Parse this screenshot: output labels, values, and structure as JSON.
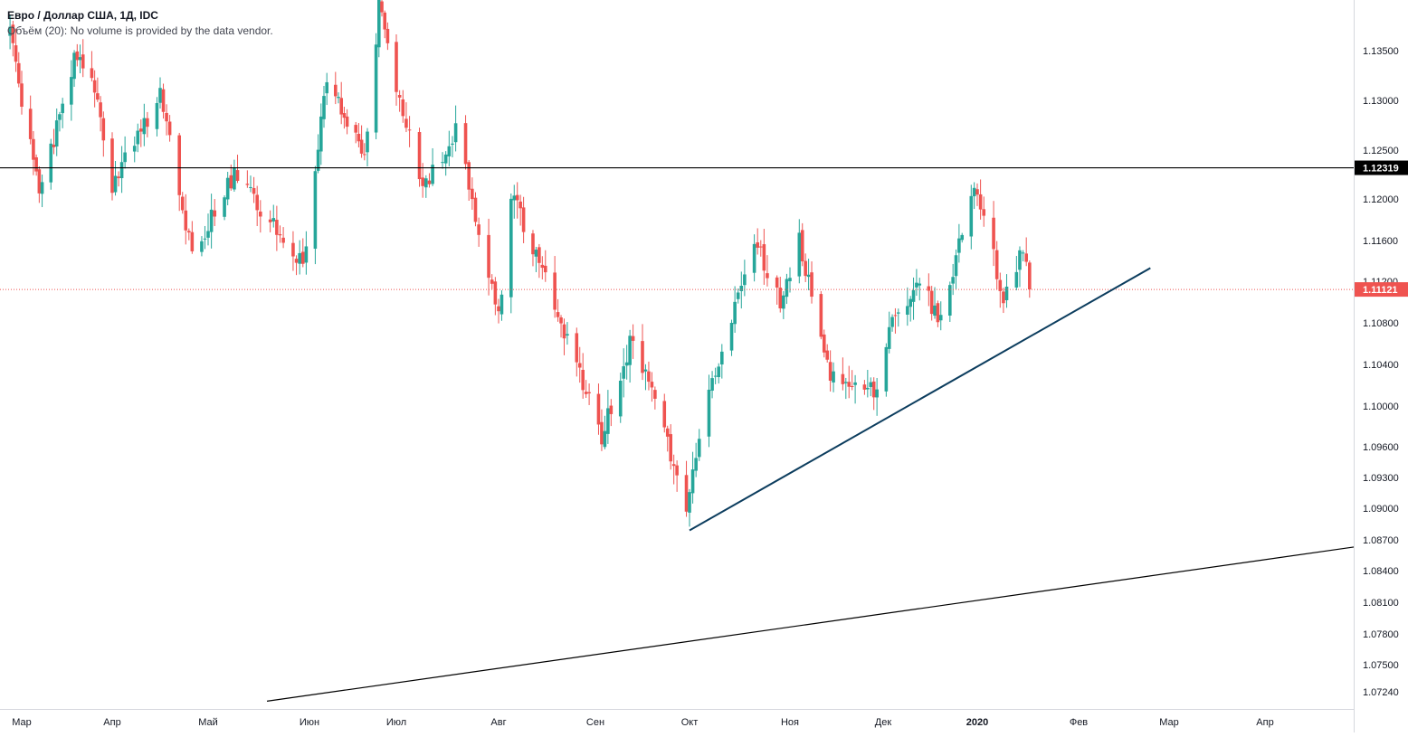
{
  "legend": {
    "title": "Евро / Доллар США, 1Д, IDC",
    "volume_note": "Объём (20): No volume is provided by the data vendor."
  },
  "colors": {
    "up": "#26a69a",
    "down": "#ef5350",
    "trendline": "#0c3d5e",
    "resistance": "#000000",
    "price_line": "#ef5350",
    "axis_text": "#131722"
  },
  "chart_data": {
    "type": "candlestick",
    "symbol": "EURUSD",
    "y_axis": {
      "ticks": [
        1.135,
        1.13,
        1.125,
        1.12,
        1.116,
        1.112,
        1.108,
        1.104,
        1.1,
        1.096,
        1.093,
        1.09,
        1.087,
        1.084,
        1.081,
        1.078,
        1.075,
        1.0724
      ],
      "tick_labels": [
        "1.13500",
        "1.13000",
        "1.12500",
        "1.12000",
        "1.11600",
        "1.11200",
        "1.10800",
        "1.10400",
        "1.10000",
        "1.09600",
        "1.09300",
        "1.09000",
        "1.08700",
        "1.08400",
        "1.08100",
        "1.07800",
        "1.07500",
        "1.07240"
      ],
      "range": [
        1.0715,
        1.1405
      ]
    },
    "x_axis": {
      "labels": [
        "Мар",
        "Апр",
        "Май",
        "Июн",
        "Июл",
        "Авг",
        "Сен",
        "Окт",
        "Ноя",
        "Дек",
        "2020",
        "Фев",
        "Мар",
        "Апр"
      ],
      "label_dates": [
        "2019-03-01",
        "2019-04-01",
        "2019-05-01",
        "2019-06-01",
        "2019-07-01",
        "2019-08-01",
        "2019-09-01",
        "2019-10-01",
        "2019-11-01",
        "2019-12-01",
        "2020-01-01",
        "2020-02-01",
        "2020-03-01",
        "2020-04-01"
      ],
      "range": [
        "2019-02-25",
        "2020-05-05"
      ]
    },
    "horizontal_lines": [
      {
        "price": 1.12319,
        "label": "1.12319",
        "style": "solid"
      },
      {
        "price": 1.11121,
        "label": "1.11121",
        "style": "dotted",
        "current": true
      }
    ],
    "trendlines": [
      {
        "from": {
          "date": "2019-10-01",
          "price": 1.0879
        },
        "to": {
          "date": "2020-02-24",
          "price": 1.1133
        }
      },
      {
        "from": {
          "date": "2019-05-19",
          "price": 1.0715
        },
        "to": {
          "date": "2020-05-05",
          "price": 1.0863
        }
      }
    ],
    "ohlc_range": {
      "first_date": "2019-02-25",
      "last_date": "2020-01-17"
    },
    "ohlc_keypoints": [
      {
        "date": "2019-02-25",
        "price": 1.1365
      },
      {
        "date": "2019-03-07",
        "price": 1.1205
      },
      {
        "date": "2019-03-19",
        "price": 1.134
      },
      {
        "date": "2019-03-25",
        "price": 1.133
      },
      {
        "date": "2019-04-01",
        "price": 1.1215
      },
      {
        "date": "2019-04-16",
        "price": 1.1305
      },
      {
        "date": "2019-04-26",
        "price": 1.1145
      },
      {
        "date": "2019-05-09",
        "price": 1.1225
      },
      {
        "date": "2019-05-23",
        "price": 1.1165
      },
      {
        "date": "2019-05-30",
        "price": 1.1135
      },
      {
        "date": "2019-06-07",
        "price": 1.1325
      },
      {
        "date": "2019-06-20",
        "price": 1.124
      },
      {
        "date": "2019-06-25",
        "price": 1.1395
      },
      {
        "date": "2019-07-09",
        "price": 1.121
      },
      {
        "date": "2019-07-19",
        "price": 1.127
      },
      {
        "date": "2019-08-01",
        "price": 1.1085
      },
      {
        "date": "2019-08-05",
        "price": 1.1205
      },
      {
        "date": "2019-08-19",
        "price": 1.11
      },
      {
        "date": "2019-09-03",
        "price": 1.097
      },
      {
        "date": "2019-09-12",
        "price": 1.106
      },
      {
        "date": "2019-09-20",
        "price": 1.101
      },
      {
        "date": "2019-09-30",
        "price": 1.0898
      },
      {
        "date": "2019-10-04",
        "price": 1.0975
      },
      {
        "date": "2019-10-21",
        "price": 1.116
      },
      {
        "date": "2019-10-29",
        "price": 1.11
      },
      {
        "date": "2019-11-04",
        "price": 1.116
      },
      {
        "date": "2019-11-14",
        "price": 1.1025
      },
      {
        "date": "2019-11-29",
        "price": 1.1015
      },
      {
        "date": "2019-12-04",
        "price": 1.108
      },
      {
        "date": "2019-12-13",
        "price": 1.112
      },
      {
        "date": "2019-12-20",
        "price": 1.108
      },
      {
        "date": "2019-12-31",
        "price": 1.122
      },
      {
        "date": "2020-01-09",
        "price": 1.1105
      },
      {
        "date": "2020-01-15",
        "price": 1.115
      },
      {
        "date": "2020-01-17",
        "price": 1.1112
      }
    ],
    "last_price": 1.11121
  }
}
